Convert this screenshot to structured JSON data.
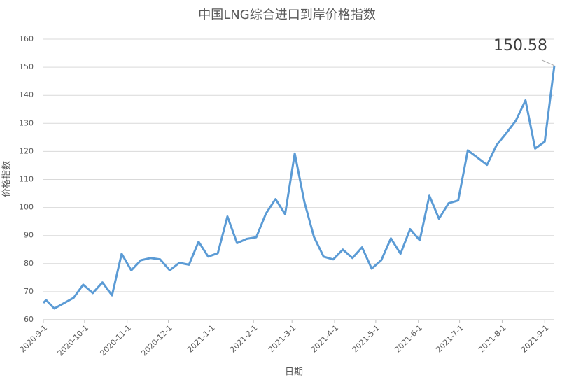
{
  "chart_data": {
    "type": "line",
    "title": "中国LNG综合进口到岸价格指数",
    "x_label": "日期",
    "y_label": "价格指数",
    "x": [
      "2020-9-1",
      "2020-9-3",
      "2020-9-9",
      "2020-9-23",
      "2020-9-30",
      "2020-10-7",
      "2020-10-14",
      "2020-10-21",
      "2020-10-28",
      "2020-11-4",
      "2020-11-11",
      "2020-11-18",
      "2020-11-25",
      "2020-12-2",
      "2020-12-9",
      "2020-12-16",
      "2020-12-23",
      "2020-12-30",
      "2021-1-6",
      "2021-1-13",
      "2021-1-20",
      "2021-1-27",
      "2021-2-3",
      "2021-2-10",
      "2021-2-17",
      "2021-2-24",
      "2021-3-3",
      "2021-3-10",
      "2021-3-17",
      "2021-3-24",
      "2021-3-31",
      "2021-4-7",
      "2021-4-14",
      "2021-4-21",
      "2021-4-28",
      "2021-5-5",
      "2021-5-12",
      "2021-5-19",
      "2021-5-26",
      "2021-6-2",
      "2021-6-9",
      "2021-6-16",
      "2021-6-23",
      "2021-6-30",
      "2021-7-7",
      "2021-7-14",
      "2021-7-21",
      "2021-7-28",
      "2021-8-4",
      "2021-8-11",
      "2021-8-18",
      "2021-8-25",
      "2021-9-1",
      "2021-9-8"
    ],
    "series": [
      {
        "name": "价格指数",
        "color": "#5b9bd5",
        "values": [
          66,
          67,
          64,
          67.8,
          72.5,
          69.5,
          73.3,
          68.7,
          83.5,
          77.6,
          81.2,
          82,
          81.5,
          77.6,
          80.3,
          79.6,
          87.8,
          82.5,
          83.7,
          96.8,
          87.3,
          88.8,
          89.4,
          97.8,
          103,
          97.6,
          119.3,
          102,
          89.5,
          82.5,
          81.5,
          85,
          82,
          85.8,
          78.2,
          81.2,
          89,
          83.5,
          92.3,
          88.3,
          104.2,
          96,
          101.5,
          102.5,
          120.4,
          117.8,
          115.2,
          122.3,
          126.5,
          131,
          138.2,
          121,
          123.5,
          150.58
        ]
      }
    ],
    "xlim": [
      "2020-9-1",
      "2021-9-8"
    ],
    "xticks": [
      "2020-9-1",
      "2020-10-1",
      "2020-11-1",
      "2020-12-1",
      "2021-1-1",
      "2021-2-1",
      "2021-3-1",
      "2021-4-1",
      "2021-5-1",
      "2021-6-1",
      "2021-7-1",
      "2021-8-1",
      "2021-9-1"
    ],
    "ylim": [
      60,
      160
    ],
    "yticks": [
      60,
      70,
      80,
      90,
      100,
      110,
      120,
      130,
      140,
      150,
      160
    ],
    "grid": true,
    "annotations": [
      {
        "text": "150.58",
        "x": "2021-9-8",
        "y": 150.58
      }
    ]
  }
}
